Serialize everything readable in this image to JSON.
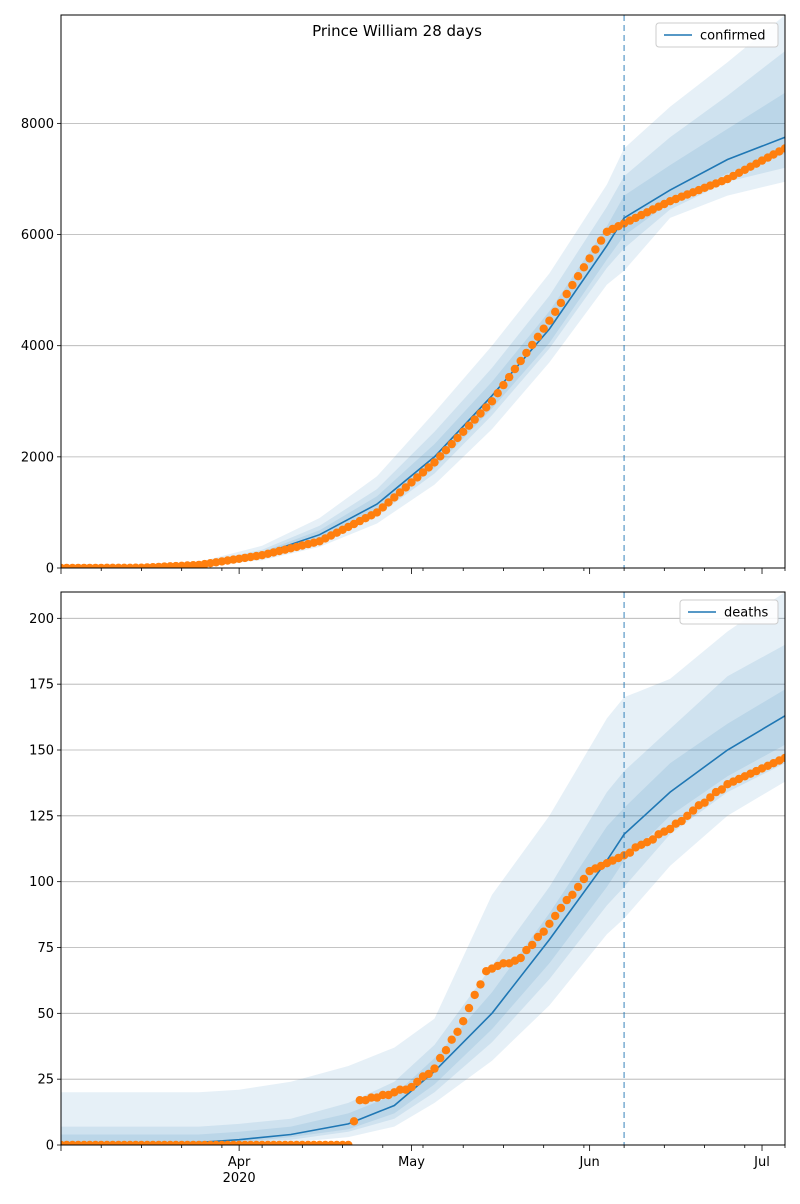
{
  "figure": {
    "title": "Prince William 28 days"
  },
  "colors": {
    "model_line": "#1f77b4",
    "observed_points": "#ff7f0e",
    "band": "#1f77b4",
    "cutoff_line": "#1f77b4",
    "grid": "#b0b0b0"
  },
  "x_axis": {
    "month_labels": [
      "Apr",
      "May",
      "Jun",
      "Jul"
    ],
    "year_label": "2020"
  },
  "chart_data": [
    {
      "type": "line",
      "panel": "top",
      "legend": [
        "confirmed"
      ],
      "legend_position": "top-right",
      "grid": "horizontal",
      "x_range": [
        "2020-03-01",
        "2020-07-05"
      ],
      "ylim": [
        0,
        9950
      ],
      "yticks": [
        0,
        2000,
        4000,
        6000,
        8000
      ],
      "cutoff_date": "2020-06-07",
      "fit": {
        "x": [
          "2020-03-01",
          "2020-03-15",
          "2020-03-25",
          "2020-04-05",
          "2020-04-15",
          "2020-04-25",
          "2020-05-05",
          "2020-05-15",
          "2020-05-25",
          "2020-06-04",
          "2020-06-07",
          "2020-06-15",
          "2020-06-25",
          "2020-07-05"
        ],
        "y": [
          0,
          8,
          60,
          250,
          600,
          1150,
          2000,
          3100,
          4300,
          5800,
          6300,
          6800,
          7350,
          7750
        ]
      },
      "bands": [
        {
          "upper": [
            0,
            15,
            110,
            400,
            900,
            1650,
            2800,
            4000,
            5300,
            6900,
            7550,
            8300,
            9100,
            9950
          ],
          "lower": [
            0,
            3,
            25,
            140,
            380,
            800,
            1500,
            2500,
            3700,
            5100,
            5350,
            6300,
            6700,
            6950
          ]
        },
        {
          "upper": [
            0,
            12,
            85,
            330,
            760,
            1420,
            2450,
            3600,
            4900,
            6500,
            7050,
            7750,
            8500,
            9300
          ],
          "lower": [
            0,
            5,
            40,
            190,
            470,
            940,
            1700,
            2750,
            3950,
            5400,
            5750,
            6450,
            6950,
            7200
          ]
        },
        {
          "upper": [
            0,
            10,
            70,
            290,
            680,
            1290,
            2230,
            3350,
            4620,
            6150,
            6700,
            7250,
            7900,
            8550
          ],
          "lower": [
            0,
            6,
            50,
            215,
            525,
            1020,
            1800,
            2870,
            4050,
            5550,
            5980,
            6580,
            7100,
            7450
          ]
        }
      ],
      "observed": {
        "x": [
          "2020-03-01",
          "2020-03-15",
          "2020-03-25",
          "2020-04-05",
          "2020-04-15",
          "2020-04-25",
          "2020-05-05",
          "2020-05-15",
          "2020-05-25",
          "2020-06-04",
          "2020-06-07",
          "2020-06-15",
          "2020-06-25",
          "2020-07-05"
        ],
        "y": [
          0,
          5,
          55,
          230,
          480,
          1000,
          1900,
          3000,
          4450,
          6050,
          6200,
          6600,
          7000,
          7550
        ]
      }
    },
    {
      "type": "line",
      "panel": "bottom",
      "legend": [
        "deaths"
      ],
      "legend_position": "top-right",
      "grid": "horizontal",
      "x_range": [
        "2020-03-01",
        "2020-07-05"
      ],
      "ylim": [
        0,
        210
      ],
      "yticks": [
        0,
        25,
        50,
        75,
        100,
        125,
        150,
        175,
        200
      ],
      "cutoff_date": "2020-06-07",
      "fit": {
        "x": [
          "2020-03-01",
          "2020-03-25",
          "2020-04-01",
          "2020-04-10",
          "2020-04-20",
          "2020-04-28",
          "2020-05-05",
          "2020-05-15",
          "2020-05-25",
          "2020-06-04",
          "2020-06-07",
          "2020-06-15",
          "2020-06-25",
          "2020-07-05"
        ],
        "y": [
          0,
          1,
          2,
          4,
          8,
          15,
          28,
          50,
          78,
          108,
          118,
          134,
          150,
          163
        ]
      },
      "bands": [
        {
          "upper": [
            20,
            20,
            21,
            24,
            30,
            37,
            48,
            95,
            125,
            162,
            170,
            177,
            195,
            210
          ],
          "lower": [
            0,
            0,
            0,
            1,
            3,
            7,
            16,
            32,
            53,
            80,
            86,
            106,
            125,
            138
          ]
        },
        {
          "upper": [
            7,
            7,
            8,
            10,
            16,
            24,
            38,
            68,
            98,
            134,
            142,
            158,
            178,
            190
          ],
          "lower": [
            0,
            0,
            1,
            2,
            5,
            10,
            20,
            39,
            63,
            91,
            98,
            118,
            134,
            145
          ]
        },
        {
          "upper": [
            4,
            4,
            5,
            7,
            12,
            19,
            33,
            58,
            88,
            121,
            128,
            145,
            160,
            173
          ],
          "lower": [
            0,
            0,
            1,
            3,
            6,
            12,
            23,
            44,
            69,
            98,
            108,
            125,
            140,
            152
          ]
        }
      ],
      "observed": {
        "x": [
          "2020-03-01",
          "2020-03-24",
          "2020-04-01",
          "2020-04-10",
          "2020-04-20",
          "2020-04-22",
          "2020-04-25",
          "2020-05-01",
          "2020-05-05",
          "2020-05-10",
          "2020-05-14",
          "2020-05-20",
          "2020-05-25",
          "2020-06-01",
          "2020-06-07",
          "2020-06-15",
          "2020-06-25",
          "2020-07-05"
        ],
        "y": [
          0,
          0,
          0,
          0,
          0,
          17,
          18,
          22,
          29,
          47,
          66,
          71,
          84,
          104,
          110,
          120,
          137,
          147
        ]
      }
    }
  ]
}
